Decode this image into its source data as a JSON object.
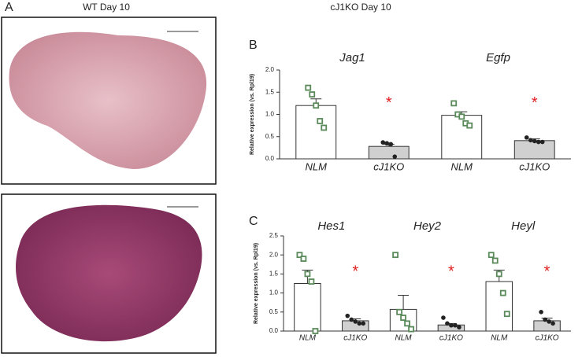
{
  "figure": {
    "panel_a": "A",
    "left_heading": "WT Day 10",
    "right_heading": "cJ1KO Day 10"
  },
  "chart_data": [
    {
      "type": "bar",
      "panel": "B",
      "ylabel": "Relative expression (vs. Rpl19)",
      "group_labels": [
        "Jag1",
        "Egfp"
      ],
      "categories": [
        "NLM",
        "cJ1KO",
        "NLM",
        "cJ1KO"
      ],
      "values": [
        1.2,
        0.28,
        0.98,
        0.41
      ],
      "errors": [
        0.15,
        0.05,
        0.08,
        0.04
      ],
      "points": [
        [
          1.6,
          1.45,
          1.2,
          0.85,
          0.7
        ],
        [
          0.37,
          0.35,
          0.33,
          0.05
        ],
        [
          1.25,
          1.0,
          0.95,
          0.8,
          0.75
        ],
        [
          0.48,
          0.42,
          0.4,
          0.38,
          0.38
        ]
      ],
      "bar_colors": [
        "#ffffff",
        "#d0d0d0",
        "#ffffff",
        "#d0d0d0"
      ],
      "point_colors": [
        "#5a8a5a",
        "#222222",
        "#5a8a5a",
        "#222222"
      ],
      "significance_label": "*",
      "significant": [
        false,
        true,
        false,
        true
      ],
      "significance_color": "#e02020",
      "ylim": [
        0,
        2.0
      ],
      "yticks": [
        {
          "value": 0,
          "label": "0.0"
        },
        {
          "value": 0.5,
          "label": "0.5"
        },
        {
          "value": 1.0,
          "label": "1.0"
        },
        {
          "value": 1.5,
          "label": "1.5"
        },
        {
          "value": 2.0,
          "label": "2.0"
        }
      ]
    },
    {
      "type": "bar",
      "panel": "C",
      "ylabel": "Relative expression (vs. Rpl19)",
      "group_labels": [
        "Hes1",
        "Hey2",
        "Heyl"
      ],
      "categories": [
        "NLM",
        "cJ1KO",
        "NLM",
        "cJ1KO",
        "NLM",
        "cJ1KO"
      ],
      "values": [
        1.25,
        0.27,
        0.57,
        0.16,
        1.3,
        0.27
      ],
      "errors": [
        0.35,
        0.05,
        0.37,
        0.04,
        0.3,
        0.07
      ],
      "points": [
        [
          2.0,
          1.9,
          1.5,
          1.3,
          0.0
        ],
        [
          0.4,
          0.3,
          0.25,
          0.2,
          0.2
        ],
        [
          2.0,
          0.5,
          0.35,
          0.2,
          0.05
        ],
        [
          0.35,
          0.2,
          0.15,
          0.15,
          0.1
        ],
        [
          2.0,
          1.85,
          1.5,
          1.0,
          0.45
        ],
        [
          0.5,
          0.3,
          0.25,
          0.2
        ]
      ],
      "bar_colors": [
        "#ffffff",
        "#d0d0d0",
        "#ffffff",
        "#d0d0d0",
        "#ffffff",
        "#d0d0d0"
      ],
      "point_colors": [
        "#5a8a5a",
        "#222222",
        "#5a8a5a",
        "#222222",
        "#5a8a5a",
        "#222222"
      ],
      "significance_label": "*",
      "significant": [
        false,
        true,
        false,
        true,
        false,
        true
      ],
      "significance_color": "#e02020",
      "ylim": [
        0,
        2.5
      ],
      "yticks": [
        {
          "value": 0,
          "label": "0.0"
        },
        {
          "value": 0.5,
          "label": "0.5"
        },
        {
          "value": 1.0,
          "label": "1.0"
        },
        {
          "value": 1.5,
          "label": "1.5"
        },
        {
          "value": 2.0,
          "label": "2.0"
        },
        {
          "value": 2.5,
          "label": "2.5"
        }
      ]
    }
  ]
}
